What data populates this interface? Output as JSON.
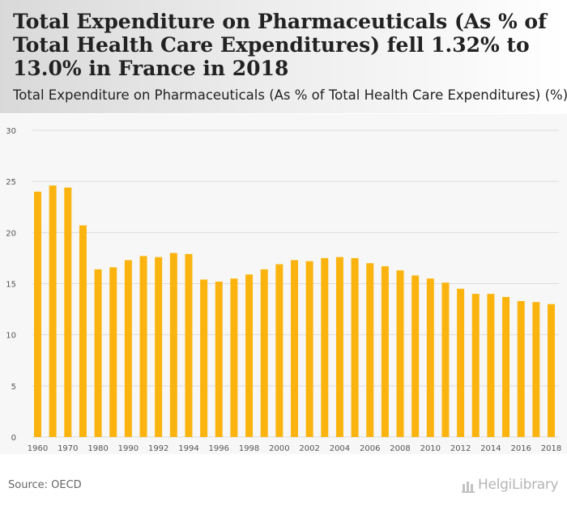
{
  "header": {
    "title": "Total Expenditure on Pharmaceuticals (As % of Total Health Care Expenditures) fell 1.32% to 13.0% in France in 2018",
    "subtitle": "Total Expenditure on Pharmaceuticals (As % of Total Health Care Expenditures) (%)"
  },
  "footer": {
    "source": "Source: OECD",
    "brand": "HelgiLibrary"
  },
  "colors": {
    "bar": "#fbb40f",
    "grid": "#dddddd",
    "axis_text": "#555555"
  },
  "chart_data": {
    "type": "bar",
    "title": "",
    "xlabel": "",
    "ylabel": "",
    "ylim": [
      0,
      30
    ],
    "yticks": [
      0,
      5,
      10,
      15,
      20,
      25,
      30
    ],
    "categories": [
      "1960",
      "1965",
      "1970",
      "1975",
      "1980",
      "1985",
      "1990",
      "1991",
      "1992",
      "1993",
      "1994",
      "1995",
      "1996",
      "1997",
      "1998",
      "1999",
      "2000",
      "2001",
      "2002",
      "2003",
      "2004",
      "2005",
      "2006",
      "2007",
      "2008",
      "2009",
      "2010",
      "2011",
      "2012",
      "2013",
      "2014",
      "2015",
      "2016",
      "2017",
      "2018"
    ],
    "xtick_labels": [
      "1960",
      "1970",
      "1980",
      "1990",
      "1992",
      "1994",
      "1996",
      "1998",
      "2000",
      "2002",
      "2004",
      "2006",
      "2008",
      "2010",
      "2012",
      "2014",
      "2016",
      "2018"
    ],
    "values": [
      24.0,
      24.6,
      24.4,
      20.7,
      16.4,
      16.6,
      17.3,
      17.7,
      17.6,
      18.0,
      17.9,
      15.4,
      15.2,
      15.5,
      15.9,
      16.4,
      16.9,
      17.3,
      17.2,
      17.5,
      17.6,
      17.5,
      17.0,
      16.7,
      16.3,
      15.8,
      15.5,
      15.1,
      14.5,
      14.0,
      14.0,
      13.7,
      13.3,
      13.2,
      13.0
    ],
    "grid": true,
    "legend": "none"
  }
}
